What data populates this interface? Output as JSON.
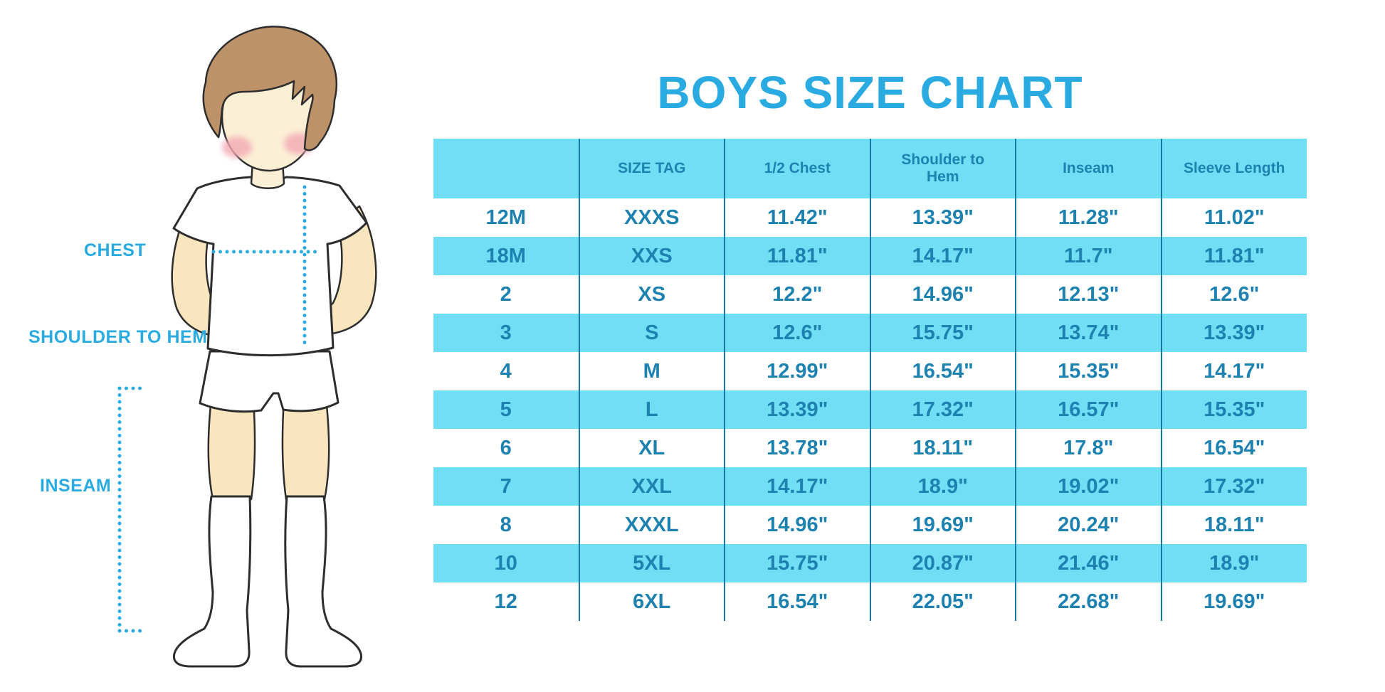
{
  "page": {
    "title": "BOYS SIZE CHART"
  },
  "diagram": {
    "labels": {
      "chest": "CHEST",
      "shoulder_to_hem": "SHOULDER TO HEM",
      "inseam": "INSEAM"
    }
  },
  "chart_data": {
    "type": "table",
    "title": "BOYS SIZE CHART",
    "units": "inches",
    "columns": [
      "",
      "SIZE TAG",
      "1/2 Chest",
      "Shoulder to Hem",
      "Inseam",
      "Sleeve Length"
    ],
    "rows": [
      [
        "12M",
        "XXXS",
        "11.42\"",
        "13.39\"",
        "11.28\"",
        "11.02\""
      ],
      [
        "18M",
        "XXS",
        "11.81\"",
        "14.17\"",
        "11.7\"",
        "11.81\""
      ],
      [
        "2",
        "XS",
        "12.2\"",
        "14.96\"",
        "12.13\"",
        "12.6\""
      ],
      [
        "3",
        "S",
        "12.6\"",
        "15.75\"",
        "13.74\"",
        "13.39\""
      ],
      [
        "4",
        "M",
        "12.99\"",
        "16.54\"",
        "15.35\"",
        "14.17\""
      ],
      [
        "5",
        "L",
        "13.39\"",
        "17.32\"",
        "16.57\"",
        "15.35\""
      ],
      [
        "6",
        "XL",
        "13.78\"",
        "18.11\"",
        "17.8\"",
        "16.54\""
      ],
      [
        "7",
        "XXL",
        "14.17\"",
        "18.9\"",
        "19.02\"",
        "17.32\""
      ],
      [
        "8",
        "XXXL",
        "14.96\"",
        "19.69\"",
        "20.24\"",
        "18.11\""
      ],
      [
        "10",
        "5XL",
        "15.75\"",
        "20.87\"",
        "21.46\"",
        "18.9\""
      ],
      [
        "12",
        "6XL",
        "16.54\"",
        "22.05\"",
        "22.68\"",
        "19.69\""
      ]
    ]
  },
  "colors": {
    "accent_blue": "#29ABE2",
    "table_fill_blue": "#70DFF6",
    "table_text_blue": "#1E82B0",
    "table_divider_blue": "#1578A6",
    "skin": "#F9E5BE",
    "face_skin": "#FBEFD6",
    "hair_brown": "#BE9268",
    "cheek_pink": "#F3A8B2",
    "outline_dark": "#2D2D2D",
    "background": "#FFFFFF"
  }
}
